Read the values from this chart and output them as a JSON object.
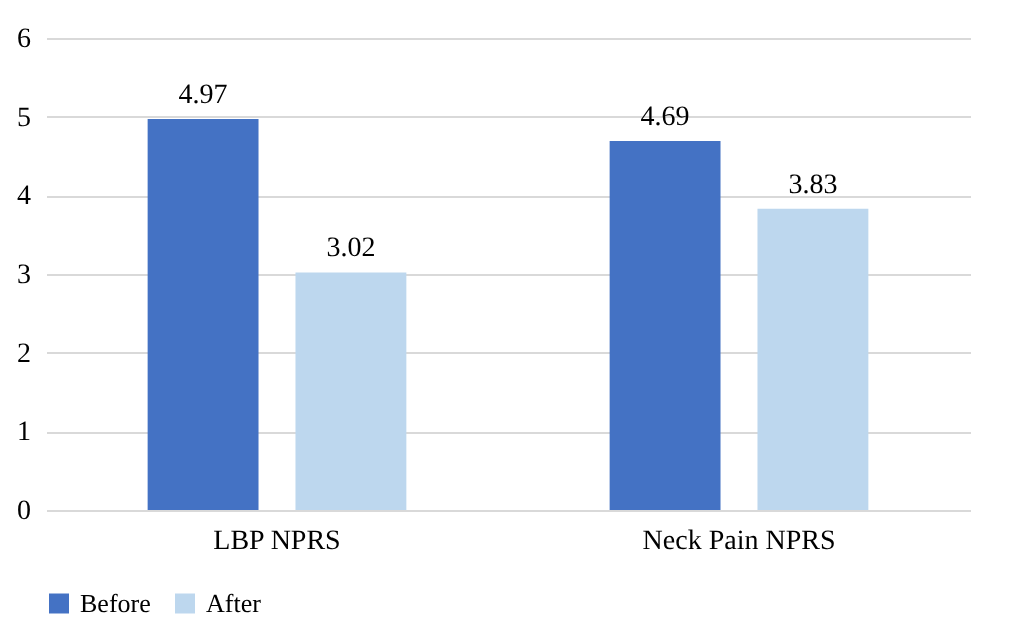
{
  "chart_data": {
    "type": "bar",
    "categories": [
      "LBP NPRS",
      "Neck Pain NPRS"
    ],
    "series": [
      {
        "name": "Before",
        "color": "#4472c4",
        "values": [
          4.97,
          4.69
        ]
      },
      {
        "name": "After",
        "color": "#bdd7ee",
        "values": [
          3.02,
          3.83
        ]
      }
    ],
    "ylim": [
      0,
      6
    ],
    "yticks": [
      0,
      1,
      2,
      3,
      4,
      5,
      6
    ],
    "grid": "y",
    "legend": "bottom",
    "data_labels": true
  }
}
